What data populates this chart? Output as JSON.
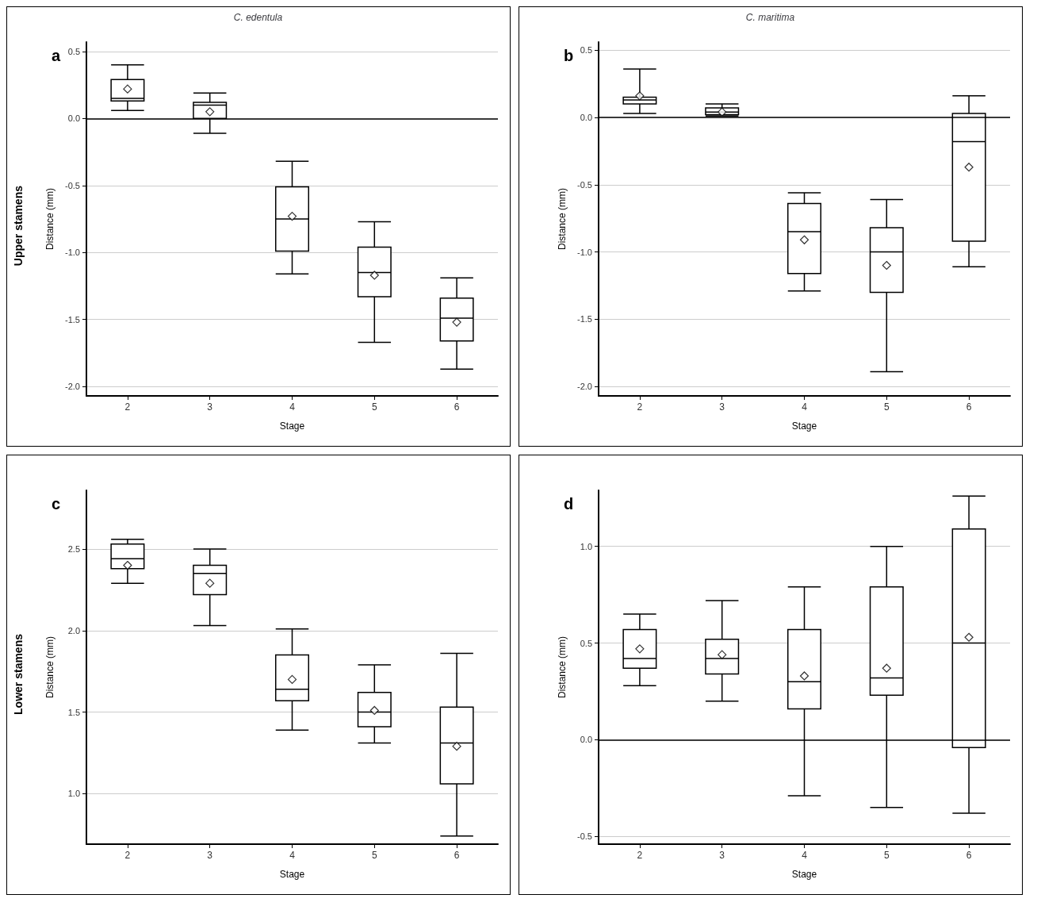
{
  "chart_data": [
    {
      "type": "box",
      "title": "C. edentula",
      "xlabel": "Stage",
      "ylabel": "Distance (mm)",
      "annotations": [
        "a",
        "Upper stamens"
      ],
      "categories": [
        "2",
        "3",
        "4",
        "5",
        "6"
      ],
      "ylim": [
        -2.07,
        0.57
      ],
      "yticks": [
        0.5,
        {
          "value": 0,
          "label": "0.0"
        },
        -0.5,
        {
          "value": -1,
          "label": "-1.0"
        },
        -1.5,
        {
          "value": -2,
          "label": "-2.0"
        }
      ],
      "grid": "y",
      "marker": "diamond",
      "ref_lines": [
        {
          "axis": "y",
          "value": 0,
          "color": "#000000"
        }
      ],
      "boxes": [
        {
          "low": 0.06,
          "q1": 0.13,
          "median": 0.15,
          "q3": 0.29,
          "high": 0.4,
          "mean": 0.22
        },
        {
          "low": -0.11,
          "q1": 0.0,
          "median": 0.1,
          "q3": 0.12,
          "high": 0.19,
          "mean": 0.05
        },
        {
          "low": -1.16,
          "q1": -0.99,
          "median": -0.75,
          "q3": -0.51,
          "high": -0.32,
          "mean": -0.73
        },
        {
          "low": -1.67,
          "q1": -1.33,
          "median": -1.15,
          "q3": -0.96,
          "high": -0.77,
          "mean": -1.17
        },
        {
          "low": -1.87,
          "q1": -1.66,
          "median": -1.49,
          "q3": -1.34,
          "high": -1.19,
          "mean": -1.52
        }
      ]
    },
    {
      "type": "box",
      "title": "C. maritima",
      "xlabel": "Stage",
      "ylabel": "Distance (mm)",
      "annotations": [
        "b"
      ],
      "categories": [
        "2",
        "3",
        "4",
        "5",
        "6"
      ],
      "ylim": [
        -2.07,
        0.56
      ],
      "yticks": [
        0.5,
        {
          "value": 0,
          "label": "0.0"
        },
        -0.5,
        {
          "value": -1,
          "label": "-1.0"
        },
        -1.5,
        {
          "value": -2,
          "label": "-2.0"
        }
      ],
      "grid": "y",
      "marker": "diamond",
      "ref_lines": [
        {
          "axis": "y",
          "value": 0,
          "color": "#000000"
        }
      ],
      "boxes": [
        {
          "low": 0.03,
          "q1": 0.1,
          "median": 0.13,
          "q3": 0.15,
          "high": 0.36,
          "mean": 0.16
        },
        {
          "low": 0.01,
          "q1": 0.02,
          "median": 0.04,
          "q3": 0.07,
          "high": 0.1,
          "mean": 0.04
        },
        {
          "low": -1.29,
          "q1": -1.16,
          "median": -0.85,
          "q3": -0.64,
          "high": -0.56,
          "mean": -0.91
        },
        {
          "low": -1.89,
          "q1": -1.3,
          "median": -1.0,
          "q3": -0.82,
          "high": -0.61,
          "mean": -1.1
        },
        {
          "low": -1.11,
          "q1": -0.92,
          "median": -0.18,
          "q3": 0.03,
          "high": 0.16,
          "mean": -0.37
        }
      ]
    },
    {
      "type": "box",
      "xlabel": "Stage",
      "ylabel": "Distance (mm)",
      "annotations": [
        "c",
        "Lower stamens"
      ],
      "categories": [
        "2",
        "3",
        "4",
        "5",
        "6"
      ],
      "ylim": [
        0.69,
        2.86
      ],
      "yticks": [
        2.5,
        {
          "value": 2,
          "label": "2.0"
        },
        1.5,
        {
          "value": 1,
          "label": "1.0"
        }
      ],
      "grid": "y",
      "marker": "diamond",
      "boxes": [
        {
          "low": 2.29,
          "q1": 2.38,
          "median": 2.44,
          "q3": 2.53,
          "high": 2.56,
          "mean": 2.4
        },
        {
          "low": 2.03,
          "q1": 2.22,
          "median": 2.35,
          "q3": 2.4,
          "high": 2.5,
          "mean": 2.29
        },
        {
          "low": 1.39,
          "q1": 1.57,
          "median": 1.64,
          "q3": 1.85,
          "high": 2.01,
          "mean": 1.7
        },
        {
          "low": 1.31,
          "q1": 1.41,
          "median": 1.5,
          "q3": 1.62,
          "high": 1.79,
          "mean": 1.51
        },
        {
          "low": 0.74,
          "q1": 1.06,
          "median": 1.31,
          "q3": 1.53,
          "high": 1.86,
          "mean": 1.29
        }
      ]
    },
    {
      "type": "box",
      "xlabel": "Stage",
      "ylabel": "Distance (mm)",
      "annotations": [
        "d"
      ],
      "categories": [
        "2",
        "3",
        "4",
        "5",
        "6"
      ],
      "ylim": [
        -0.54,
        1.29
      ],
      "yticks": [
        {
          "value": 1,
          "label": "1.0"
        },
        0.5,
        {
          "value": 0,
          "label": "0.0"
        },
        -0.5
      ],
      "grid": "y",
      "marker": "diamond",
      "ref_lines": [
        {
          "axis": "y",
          "value": 0,
          "color": "#000000"
        }
      ],
      "boxes": [
        {
          "low": 0.28,
          "q1": 0.37,
          "median": 0.42,
          "q3": 0.57,
          "high": 0.65,
          "mean": 0.47
        },
        {
          "low": 0.2,
          "q1": 0.34,
          "median": 0.42,
          "q3": 0.52,
          "high": 0.72,
          "mean": 0.44
        },
        {
          "low": -0.29,
          "q1": 0.16,
          "median": 0.3,
          "q3": 0.57,
          "high": 0.79,
          "mean": 0.33
        },
        {
          "low": -0.35,
          "q1": 0.23,
          "median": 0.32,
          "q3": 0.79,
          "high": 1.0,
          "mean": 0.37
        },
        {
          "low": -0.38,
          "q1": -0.04,
          "median": 0.5,
          "q3": 1.09,
          "high": 1.26,
          "mean": 0.53
        }
      ]
    }
  ]
}
